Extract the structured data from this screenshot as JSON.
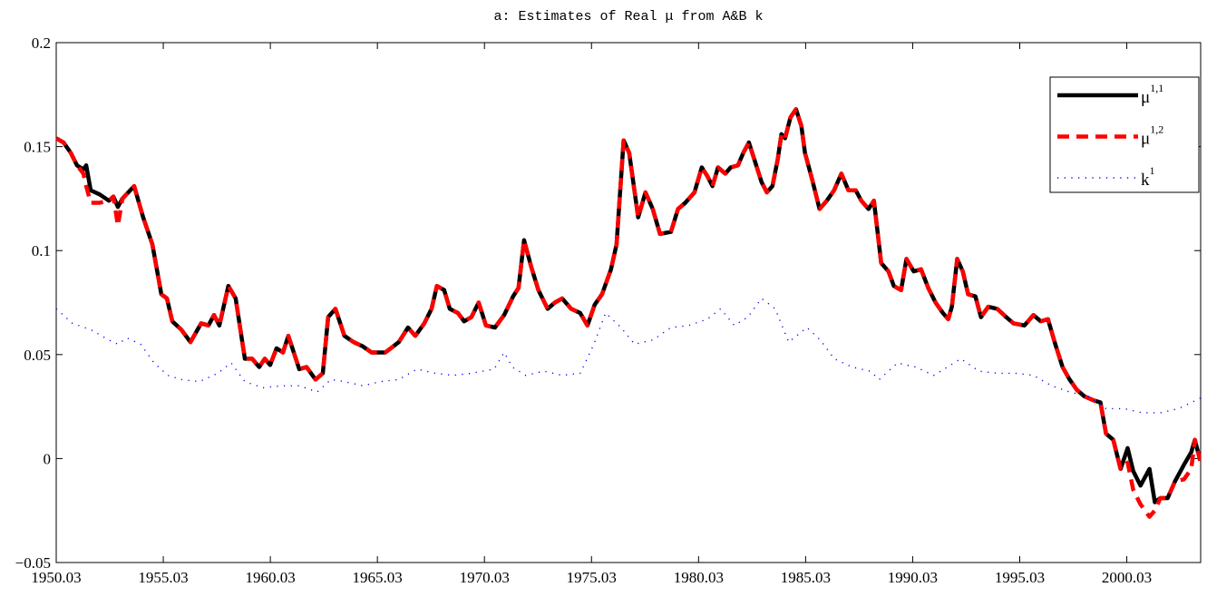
{
  "chart_data": {
    "type": "line",
    "title": "a: Estimates of Real μ from A&B k",
    "xlim": [
      1950,
      2003.45
    ],
    "ylim": [
      -0.05,
      0.2
    ],
    "xticks": [
      {
        "value": 1950,
        "label": "1950.03"
      },
      {
        "value": 1955,
        "label": "1955.03"
      },
      {
        "value": 1960,
        "label": "1960.03"
      },
      {
        "value": 1965,
        "label": "1965.03"
      },
      {
        "value": 1970,
        "label": "1970.03"
      },
      {
        "value": 1975,
        "label": "1975.03"
      },
      {
        "value": 1980,
        "label": "1980.03"
      },
      {
        "value": 1985,
        "label": "1985.03"
      },
      {
        "value": 1990,
        "label": "1990.03"
      },
      {
        "value": 1995,
        "label": "1995.03"
      },
      {
        "value": 2000,
        "label": "2000.03"
      }
    ],
    "yticks": [
      {
        "value": -0.05,
        "label": "−0.05"
      },
      0,
      0.05,
      0.1,
      0.15,
      0.2
    ],
    "grid": false,
    "legend": "upper-right",
    "series": [
      {
        "name": "μ",
        "name_sup": "1,1",
        "color": "#000000",
        "style": "solid",
        "x": [
          1950.0,
          1950.34,
          1950.68,
          1950.97,
          1951.27,
          1951.4,
          1951.61,
          1952.03,
          1952.46,
          1952.67,
          1952.88,
          1953.09,
          1953.64,
          1954.06,
          1954.49,
          1954.91,
          1955.17,
          1955.42,
          1955.84,
          1956.27,
          1956.77,
          1957.11,
          1957.37,
          1957.62,
          1958.04,
          1958.38,
          1958.81,
          1959.15,
          1959.48,
          1959.74,
          1959.99,
          1960.29,
          1960.59,
          1960.84,
          1961.35,
          1961.69,
          1962.11,
          1962.45,
          1962.7,
          1963.04,
          1963.46,
          1963.89,
          1964.31,
          1964.73,
          1965.37,
          1966.0,
          1966.43,
          1966.77,
          1967.19,
          1967.53,
          1967.78,
          1968.12,
          1968.38,
          1968.76,
          1969.05,
          1969.39,
          1969.73,
          1970.07,
          1970.49,
          1970.92,
          1971.34,
          1971.59,
          1971.85,
          1972.19,
          1972.52,
          1972.95,
          1973.29,
          1973.63,
          1974.05,
          1974.47,
          1974.81,
          1975.15,
          1975.49,
          1975.91,
          1976.17,
          1976.5,
          1976.76,
          1977.18,
          1977.52,
          1977.86,
          1978.2,
          1978.71,
          1979.04,
          1979.38,
          1979.81,
          1980.15,
          1980.4,
          1980.65,
          1980.91,
          1981.25,
          1981.5,
          1981.84,
          1982.09,
          1982.35,
          1982.6,
          1982.94,
          1983.19,
          1983.45,
          1983.7,
          1983.87,
          1984.04,
          1984.29,
          1984.55,
          1984.8,
          1984.97,
          1985.31,
          1985.65,
          1985.99,
          1986.33,
          1986.67,
          1987.0,
          1987.34,
          1987.6,
          1987.94,
          1988.19,
          1988.53,
          1988.87,
          1989.12,
          1989.46,
          1989.71,
          1990.05,
          1990.39,
          1990.73,
          1991.07,
          1991.41,
          1991.66,
          1991.83,
          1992.08,
          1992.34,
          1992.59,
          1992.93,
          1993.19,
          1993.53,
          1993.95,
          1994.37,
          1994.71,
          1995.22,
          1995.64,
          1995.98,
          1996.32,
          1996.66,
          1997.0,
          1997.33,
          1997.67,
          1998.01,
          1998.44,
          1998.77,
          1999.03,
          1999.37,
          1999.71,
          2000.04,
          2000.3,
          2000.64,
          2001.06,
          2001.31,
          2001.57,
          2001.91,
          2002.25,
          2002.67,
          2003.01,
          2003.18,
          2003.43
        ],
        "values": [
          0.154,
          0.152,
          0.147,
          0.141,
          0.139,
          0.141,
          0.129,
          0.127,
          0.124,
          0.126,
          0.121,
          0.125,
          0.131,
          0.116,
          0.103,
          0.079,
          0.077,
          0.066,
          0.062,
          0.056,
          0.065,
          0.064,
          0.069,
          0.064,
          0.083,
          0.077,
          0.048,
          0.048,
          0.044,
          0.048,
          0.045,
          0.053,
          0.051,
          0.059,
          0.043,
          0.044,
          0.038,
          0.041,
          0.068,
          0.072,
          0.059,
          0.056,
          0.054,
          0.051,
          0.051,
          0.056,
          0.063,
          0.059,
          0.065,
          0.072,
          0.083,
          0.081,
          0.072,
          0.07,
          0.066,
          0.068,
          0.075,
          0.064,
          0.063,
          0.069,
          0.078,
          0.082,
          0.105,
          0.092,
          0.081,
          0.072,
          0.075,
          0.077,
          0.072,
          0.07,
          0.064,
          0.074,
          0.079,
          0.091,
          0.103,
          0.153,
          0.147,
          0.116,
          0.128,
          0.12,
          0.108,
          0.109,
          0.12,
          0.123,
          0.128,
          0.14,
          0.136,
          0.131,
          0.14,
          0.137,
          0.14,
          0.141,
          0.147,
          0.152,
          0.144,
          0.133,
          0.128,
          0.131,
          0.144,
          0.156,
          0.154,
          0.164,
          0.168,
          0.16,
          0.147,
          0.134,
          0.12,
          0.124,
          0.129,
          0.137,
          0.129,
          0.129,
          0.124,
          0.12,
          0.124,
          0.094,
          0.09,
          0.083,
          0.081,
          0.096,
          0.09,
          0.091,
          0.082,
          0.075,
          0.07,
          0.067,
          0.073,
          0.096,
          0.09,
          0.079,
          0.078,
          0.068,
          0.073,
          0.072,
          0.068,
          0.065,
          0.064,
          0.069,
          0.066,
          0.067,
          0.055,
          0.044,
          0.038,
          0.033,
          0.03,
          0.028,
          0.027,
          0.012,
          0.009,
          -0.005,
          0.005,
          -0.006,
          -0.013,
          -0.005,
          -0.021,
          -0.019,
          -0.019,
          -0.011,
          -0.003,
          0.003,
          0.009,
          -0.001
        ]
      },
      {
        "name": "μ",
        "name_sup": "1,2",
        "color": "#ff0000",
        "style": "dashed",
        "x": [
          1950.0,
          1950.34,
          1950.68,
          1950.97,
          1951.27,
          1951.4,
          1951.61,
          1952.03,
          1952.46,
          1952.67,
          1952.88,
          1953.09,
          1953.64,
          1954.06,
          1954.49,
          1954.91,
          1955.17,
          1955.42,
          1955.84,
          1956.27,
          1956.77,
          1957.11,
          1957.37,
          1957.62,
          1958.04,
          1958.38,
          1958.81,
          1959.15,
          1959.48,
          1959.74,
          1959.99,
          1960.29,
          1960.59,
          1960.84,
          1961.35,
          1961.69,
          1962.11,
          1962.45,
          1962.7,
          1963.04,
          1963.46,
          1963.89,
          1964.31,
          1964.73,
          1965.37,
          1966.0,
          1966.43,
          1966.77,
          1967.19,
          1967.53,
          1967.78,
          1968.12,
          1968.38,
          1968.76,
          1969.05,
          1969.39,
          1969.73,
          1970.07,
          1970.49,
          1970.92,
          1971.34,
          1971.59,
          1971.85,
          1972.19,
          1972.52,
          1972.95,
          1973.29,
          1973.63,
          1974.05,
          1974.47,
          1974.81,
          1975.15,
          1975.49,
          1975.91,
          1976.17,
          1976.5,
          1976.76,
          1977.18,
          1977.52,
          1977.86,
          1978.2,
          1978.71,
          1979.04,
          1979.38,
          1979.81,
          1980.15,
          1980.4,
          1980.65,
          1980.91,
          1981.25,
          1981.5,
          1981.84,
          1982.09,
          1982.35,
          1982.6,
          1982.94,
          1983.19,
          1983.45,
          1983.7,
          1983.87,
          1984.04,
          1984.29,
          1984.55,
          1984.8,
          1984.97,
          1985.31,
          1985.65,
          1985.99,
          1986.33,
          1986.67,
          1987.0,
          1987.34,
          1987.6,
          1987.94,
          1988.19,
          1988.53,
          1988.87,
          1989.12,
          1989.46,
          1989.71,
          1990.05,
          1990.39,
          1990.73,
          1991.07,
          1991.41,
          1991.66,
          1991.83,
          1992.08,
          1992.34,
          1992.59,
          1992.93,
          1993.19,
          1993.53,
          1993.95,
          1994.37,
          1994.71,
          1995.22,
          1995.64,
          1995.98,
          1996.32,
          1996.66,
          1997.0,
          1997.33,
          1997.67,
          1998.01,
          1998.44,
          1998.77,
          1999.03,
          1999.37,
          1999.71,
          2000.04,
          2000.3,
          2000.64,
          2001.06,
          2001.31,
          2001.57,
          2001.91,
          2002.25,
          2002.67,
          2003.01,
          2003.18,
          2003.43
        ],
        "values": [
          0.154,
          0.152,
          0.147,
          0.141,
          0.137,
          0.131,
          0.123,
          0.123,
          0.124,
          0.126,
          0.112,
          0.125,
          0.131,
          0.116,
          0.103,
          0.079,
          0.077,
          0.066,
          0.062,
          0.056,
          0.065,
          0.064,
          0.069,
          0.064,
          0.083,
          0.077,
          0.048,
          0.048,
          0.044,
          0.048,
          0.045,
          0.053,
          0.051,
          0.059,
          0.043,
          0.044,
          0.038,
          0.041,
          0.068,
          0.072,
          0.059,
          0.056,
          0.054,
          0.051,
          0.051,
          0.056,
          0.063,
          0.059,
          0.065,
          0.072,
          0.083,
          0.081,
          0.072,
          0.07,
          0.066,
          0.068,
          0.075,
          0.064,
          0.063,
          0.069,
          0.078,
          0.082,
          0.105,
          0.092,
          0.081,
          0.072,
          0.075,
          0.077,
          0.072,
          0.07,
          0.064,
          0.074,
          0.079,
          0.091,
          0.103,
          0.153,
          0.147,
          0.116,
          0.128,
          0.12,
          0.108,
          0.109,
          0.12,
          0.123,
          0.128,
          0.14,
          0.136,
          0.131,
          0.14,
          0.137,
          0.14,
          0.141,
          0.147,
          0.152,
          0.144,
          0.133,
          0.128,
          0.131,
          0.144,
          0.156,
          0.154,
          0.164,
          0.168,
          0.16,
          0.147,
          0.134,
          0.12,
          0.124,
          0.129,
          0.137,
          0.129,
          0.129,
          0.124,
          0.12,
          0.124,
          0.094,
          0.09,
          0.083,
          0.081,
          0.096,
          0.09,
          0.091,
          0.082,
          0.075,
          0.07,
          0.067,
          0.073,
          0.096,
          0.09,
          0.079,
          0.078,
          0.068,
          0.073,
          0.072,
          0.068,
          0.065,
          0.064,
          0.069,
          0.066,
          0.067,
          0.055,
          0.044,
          0.038,
          0.033,
          0.03,
          0.028,
          0.027,
          0.012,
          0.009,
          -0.005,
          -0.002,
          -0.015,
          -0.022,
          -0.028,
          -0.025,
          -0.019,
          -0.019,
          -0.011,
          -0.01,
          -0.005,
          0.009,
          -0.001
        ]
      },
      {
        "name": "k",
        "name_sup": "1",
        "color": "#0000ff",
        "style": "dotted",
        "x": [
          1950.0,
          1950.76,
          1951.61,
          1952.46,
          1952.88,
          1953.3,
          1953.94,
          1954.57,
          1955.21,
          1955.84,
          1956.69,
          1957.54,
          1958.17,
          1958.81,
          1959.65,
          1960.5,
          1961.35,
          1962.19,
          1962.83,
          1963.46,
          1964.31,
          1965.16,
          1966.0,
          1966.85,
          1967.7,
          1968.54,
          1969.39,
          1970.45,
          1970.92,
          1971.3,
          1971.93,
          1972.78,
          1973.63,
          1974.47,
          1975.11,
          1975.66,
          1976.38,
          1977.01,
          1977.86,
          1978.71,
          1979.55,
          1980.4,
          1981.03,
          1981.67,
          1982.3,
          1982.94,
          1983.58,
          1984.21,
          1985.06,
          1985.69,
          1986.33,
          1987.17,
          1988.02,
          1988.44,
          1989.29,
          1990.14,
          1990.98,
          1991.62,
          1992.25,
          1993.1,
          1993.95,
          1994.79,
          1995.64,
          1996.49,
          1997.33,
          1998.18,
          1999.03,
          1999.88,
          2000.72,
          2001.57,
          2002.42,
          2003.43
        ],
        "values": [
          0.072,
          0.065,
          0.062,
          0.057,
          0.055,
          0.058,
          0.055,
          0.046,
          0.04,
          0.038,
          0.037,
          0.041,
          0.046,
          0.037,
          0.034,
          0.035,
          0.035,
          0.032,
          0.038,
          0.037,
          0.035,
          0.037,
          0.038,
          0.043,
          0.041,
          0.04,
          0.041,
          0.043,
          0.051,
          0.044,
          0.04,
          0.042,
          0.04,
          0.041,
          0.055,
          0.07,
          0.063,
          0.055,
          0.057,
          0.063,
          0.064,
          0.067,
          0.072,
          0.064,
          0.068,
          0.077,
          0.072,
          0.056,
          0.063,
          0.057,
          0.048,
          0.044,
          0.042,
          0.038,
          0.046,
          0.044,
          0.04,
          0.044,
          0.048,
          0.042,
          0.041,
          0.041,
          0.04,
          0.035,
          0.032,
          0.03,
          0.024,
          0.024,
          0.022,
          0.022,
          0.024,
          0.029
        ]
      }
    ]
  }
}
